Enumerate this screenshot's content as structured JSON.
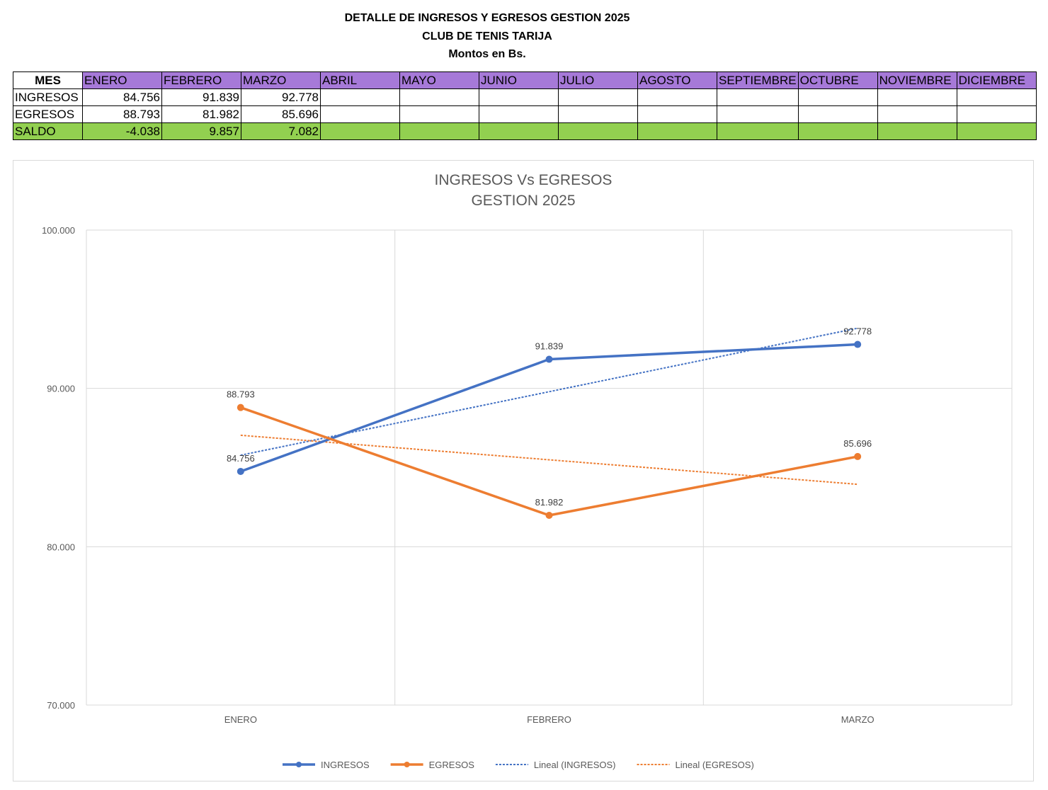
{
  "header": {
    "title": "DETALLE DE INGRESOS Y EGRESOS GESTION 2025",
    "club": "CLUB DE TENIS TARIJA",
    "units": "Montos en Bs."
  },
  "table": {
    "corner": "MES",
    "months": [
      "ENERO",
      "FEBRERO",
      "MARZO",
      "ABRIL",
      "MAYO",
      "JUNIO",
      "JULIO",
      "AGOSTO",
      "SEPTIEMBRE",
      "OCTUBRE",
      "NOVIEMBRE",
      "DICIEMBRE"
    ],
    "rows": [
      {
        "label": "INGRESOS",
        "values": [
          "84.756",
          "91.839",
          "92.778",
          "",
          "",
          "",
          "",
          "",
          "",
          "",
          "",
          ""
        ]
      },
      {
        "label": "EGRESOS",
        "values": [
          "88.793",
          "81.982",
          "85.696",
          "",
          "",
          "",
          "",
          "",
          "",
          "",
          "",
          ""
        ]
      },
      {
        "label": "SALDO",
        "values": [
          "-4.038",
          "9.857",
          "7.082",
          "",
          "",
          "",
          "",
          "",
          "",
          "",
          "",
          ""
        ]
      }
    ],
    "colors": {
      "month_header": "#a679d8",
      "saldo_row": "#92d050"
    }
  },
  "chart_data": {
    "type": "line",
    "title": [
      "INGRESOS Vs EGRESOS",
      "GESTION 2025"
    ],
    "categories": [
      "ENERO",
      "FEBRERO",
      "MARZO"
    ],
    "ylim": [
      70000,
      100000
    ],
    "yticks": [
      70000,
      80000,
      90000,
      100000
    ],
    "ytick_labels": [
      "70.000",
      "80.000",
      "90.000",
      "100.000"
    ],
    "grid": true,
    "legend_position": "bottom",
    "series": [
      {
        "name": "INGRESOS",
        "values": [
          84756,
          91839,
          92778
        ],
        "labels": [
          "84.756",
          "91.839",
          "92.778"
        ],
        "color": "#4472c4"
      },
      {
        "name": "EGRESOS",
        "values": [
          88793,
          81982,
          85696
        ],
        "labels": [
          "88.793",
          "81.982",
          "85.696"
        ],
        "color": "#ed7d31"
      }
    ],
    "trendlines": [
      {
        "name": "Lineal (INGRESOS)",
        "of": "INGRESOS",
        "kind": "linear",
        "color": "#4472c4"
      },
      {
        "name": "Lineal (EGRESOS)",
        "of": "EGRESOS",
        "kind": "linear",
        "color": "#ed7d31"
      }
    ]
  }
}
